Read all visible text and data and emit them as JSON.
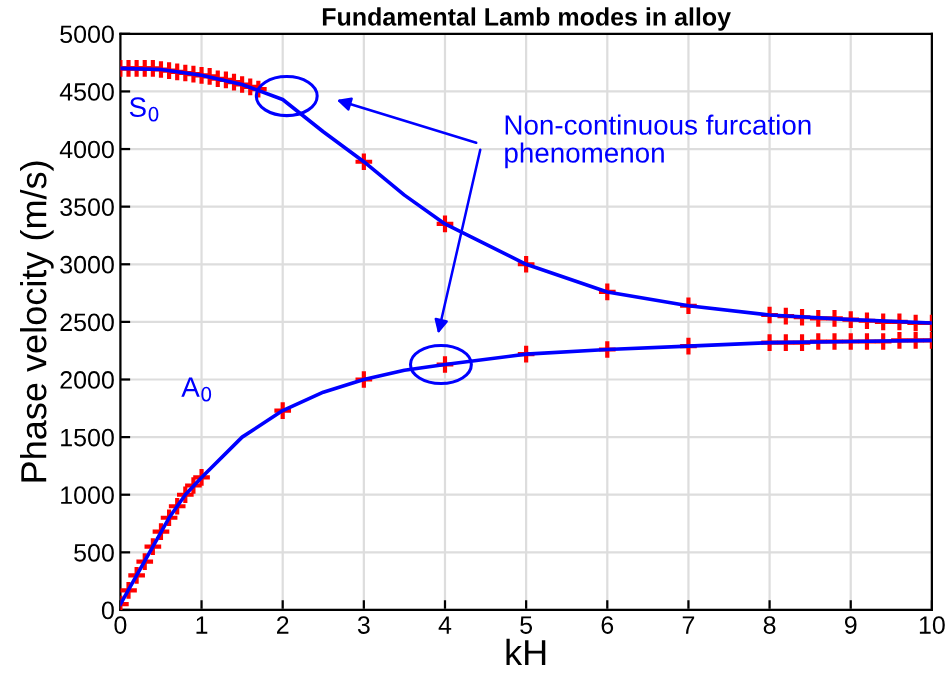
{
  "chart_data": {
    "type": "line",
    "title": "Fundamental Lamb modes in alloy",
    "xlabel": "kH",
    "ylabel": "Phase velocity (m/s)",
    "annotations": [
      "Non-continuous furcation phenomenon"
    ],
    "series": [
      {
        "name": "S$_{0}$",
        "color": "#0000ff",
        "marker": "none",
        "x": [
          0,
          0.5,
          1,
          1.5,
          2,
          2.5,
          3,
          3.5,
          4,
          5,
          6,
          7,
          8,
          9,
          10
        ],
        "values": [
          4700,
          4690,
          4640,
          4560,
          4430,
          4150,
          3890,
          3600,
          3350,
          3000,
          2760,
          2640,
          2560,
          2520,
          2490
        ]
      },
      {
        "name": "A$_{0}$",
        "color": "#0000ff",
        "marker": "none",
        "x": [
          0,
          0.2,
          0.4,
          0.6,
          0.8,
          1,
          1.5,
          2,
          2.5,
          3,
          3.5,
          4,
          5,
          6,
          7,
          8,
          9,
          10
        ],
        "values": [
          50,
          300,
          550,
          800,
          1000,
          1150,
          1500,
          1730,
          1890,
          2000,
          2080,
          2130,
          2220,
          2260,
          2290,
          2320,
          2330,
          2340
        ]
      },
      {
        "color": "#ff0000",
        "type": "scatter",
        "marker": "cross",
        "x": [
          0,
          0.1,
          0.2,
          0.3,
          0.4,
          0.5,
          0.6,
          0.7,
          0.8,
          0.9,
          1,
          1.1,
          1.2,
          1.3,
          1.4,
          1.5,
          1.6,
          1.7,
          3,
          4,
          5,
          6,
          7,
          8,
          8.2,
          8.4,
          8.6,
          8.8,
          9,
          9.2,
          9.4,
          9.6,
          9.8,
          10
        ],
        "values": [
          4700,
          4700,
          4700,
          4700,
          4700,
          4690,
          4680,
          4670,
          4660,
          4650,
          4640,
          4630,
          4610,
          4600,
          4580,
          4560,
          4540,
          4520,
          3890,
          3350,
          3000,
          2760,
          2640,
          2560,
          2550,
          2540,
          2530,
          2530,
          2520,
          2510,
          2500,
          2500,
          2490,
          2490
        ]
      },
      {
        "color": "#ff0000",
        "type": "scatter",
        "marker": "cross",
        "x": [
          0,
          0.1,
          0.2,
          0.3,
          0.4,
          0.5,
          0.6,
          0.7,
          0.8,
          0.9,
          1,
          2,
          3,
          4,
          5,
          6,
          7,
          8,
          8.2,
          8.4,
          8.6,
          8.8,
          9,
          9.2,
          9.4,
          9.6,
          9.8,
          10
        ],
        "values": [
          50,
          170,
          300,
          420,
          550,
          680,
          800,
          900,
          1000,
          1080,
          1150,
          1730,
          2000,
          2130,
          2220,
          2260,
          2290,
          2320,
          2320,
          2320,
          2330,
          2330,
          2330,
          2330,
          2330,
          2340,
          2340,
          2340
        ]
      }
    ],
    "xlim": [
      0,
      10
    ],
    "ylim": [
      0,
      5000
    ],
    "xticks": [
      0,
      1,
      2,
      3,
      4,
      5,
      6,
      7,
      8,
      9,
      10
    ],
    "yticks": [
      0,
      500,
      1000,
      1500,
      2000,
      2500,
      3000,
      3500,
      4000,
      4500,
      5000
    ],
    "grid": true,
    "line_style": "solid"
  }
}
